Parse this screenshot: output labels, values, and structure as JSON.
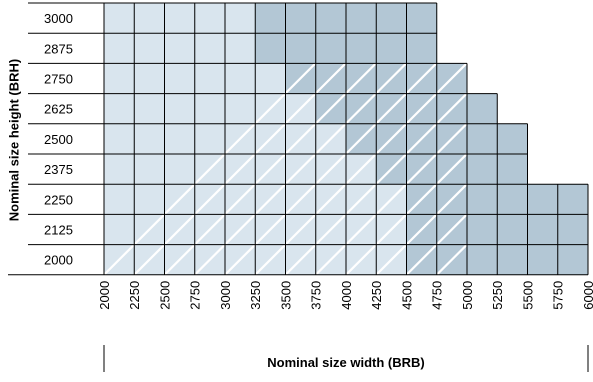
{
  "chart_data": {
    "type": "table",
    "xlabel": "Nominal size width (BRB)",
    "ylabel": "Nominal size height (BRH)",
    "x_ticks": [
      2000,
      2250,
      2500,
      2750,
      3000,
      3250,
      3500,
      3750,
      4000,
      4250,
      4500,
      4750,
      5000,
      5250,
      5500,
      5750,
      6000
    ],
    "y_ticks": [
      3000,
      2875,
      2750,
      2625,
      2500,
      2375,
      2250,
      2125,
      2000
    ],
    "max_width_by_height": [
      {
        "height": 3000,
        "max_width": 4750
      },
      {
        "height": 2875,
        "max_width": 4750
      },
      {
        "height": 2750,
        "max_width": 5000
      },
      {
        "height": 2625,
        "max_width": 5250
      },
      {
        "height": 2500,
        "max_width": 5500
      },
      {
        "height": 2375,
        "max_width": 5500
      },
      {
        "height": 2250,
        "max_width": 6000
      },
      {
        "height": 2125,
        "max_width": 6000
      },
      {
        "height": 2000,
        "max_width": 6000
      }
    ],
    "light_zone_max_width": [
      3250,
      3250,
      3500,
      3750,
      4000,
      4250,
      4500,
      4500,
      4500
    ],
    "hatched_zone_max_width": [
      0,
      0,
      5000,
      5000,
      5000,
      5000,
      5000,
      5000,
      5000
    ],
    "colors": {
      "light": "#d9e5ee",
      "dark": "#b3c7d5",
      "grid": "#000000",
      "hatch": "#ffffff"
    }
  }
}
